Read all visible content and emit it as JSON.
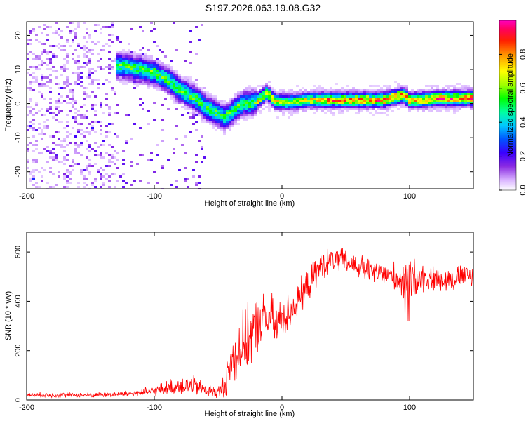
{
  "title": "S197.2026.063.19.08.G32",
  "chart_data": [
    {
      "type": "heatmap",
      "name": "spectrogram",
      "xlabel": "Height of straight line (km)",
      "ylabel": "Frequency (Hz)",
      "xlim": [
        -200,
        150
      ],
      "ylim": [
        -25,
        24
      ],
      "xticks": [
        -200,
        -100,
        0,
        100
      ],
      "yticks": [
        -20,
        -10,
        0,
        10,
        20
      ],
      "colorbar": {
        "label": "Normalized spectral amplitude",
        "range": [
          0,
          1
        ],
        "ticks": [
          "0.0",
          "0.2",
          "0.4",
          "0.6",
          "0.8"
        ],
        "tick_values": [
          0.0,
          0.2,
          0.4,
          0.6,
          0.8
        ]
      },
      "ridge": {
        "x": [
          -125,
          -110,
          -100,
          -90,
          -80,
          -70,
          -60,
          -50,
          -45,
          -40,
          -35,
          -30,
          -25,
          -20,
          -15,
          -12,
          -10,
          -5,
          0,
          10,
          20,
          30,
          40,
          50,
          60,
          70,
          80,
          90,
          95,
          100,
          110,
          120,
          130,
          140,
          150
        ],
        "freq": [
          11,
          10,
          9,
          7,
          4,
          2,
          -1,
          -3,
          -4,
          -3,
          -1,
          0,
          0,
          0.5,
          2,
          3,
          2.5,
          0.5,
          0.5,
          0.5,
          1,
          1,
          1,
          1,
          1,
          1,
          1,
          2,
          2.5,
          1,
          1,
          1.5,
          1.5,
          1.5,
          1.5
        ]
      }
    },
    {
      "type": "line",
      "name": "snr",
      "xlabel": "Height of straight line (km)",
      "ylabel": "SNR (10 * v/v)",
      "xlim": [
        -200,
        150
      ],
      "ylim": [
        0,
        680
      ],
      "xticks": [
        -200,
        -100,
        0,
        100
      ],
      "yticks": [
        0,
        200,
        400,
        600
      ],
      "color": "#ff0000",
      "envelope": {
        "x": [
          -200,
          -150,
          -120,
          -100,
          -90,
          -80,
          -70,
          -60,
          -50,
          -45,
          -40,
          -35,
          -30,
          -25,
          -20,
          -15,
          -10,
          -5,
          0,
          10,
          20,
          30,
          40,
          50,
          60,
          70,
          80,
          90,
          95,
          100,
          110,
          120,
          130,
          140,
          150
        ],
        "mean": [
          20,
          20,
          25,
          35,
          50,
          60,
          60,
          40,
          30,
          60,
          150,
          200,
          230,
          260,
          300,
          320,
          340,
          300,
          330,
          380,
          460,
          540,
          570,
          560,
          540,
          520,
          510,
          500,
          480,
          490,
          500,
          490,
          490,
          500,
          500
        ],
        "spread": [
          12,
          12,
          15,
          25,
          35,
          45,
          50,
          35,
          30,
          60,
          120,
          150,
          150,
          150,
          140,
          130,
          130,
          120,
          100,
          90,
          80,
          70,
          60,
          60,
          60,
          60,
          60,
          70,
          90,
          110,
          70,
          60,
          60,
          60,
          60
        ]
      }
    }
  ]
}
